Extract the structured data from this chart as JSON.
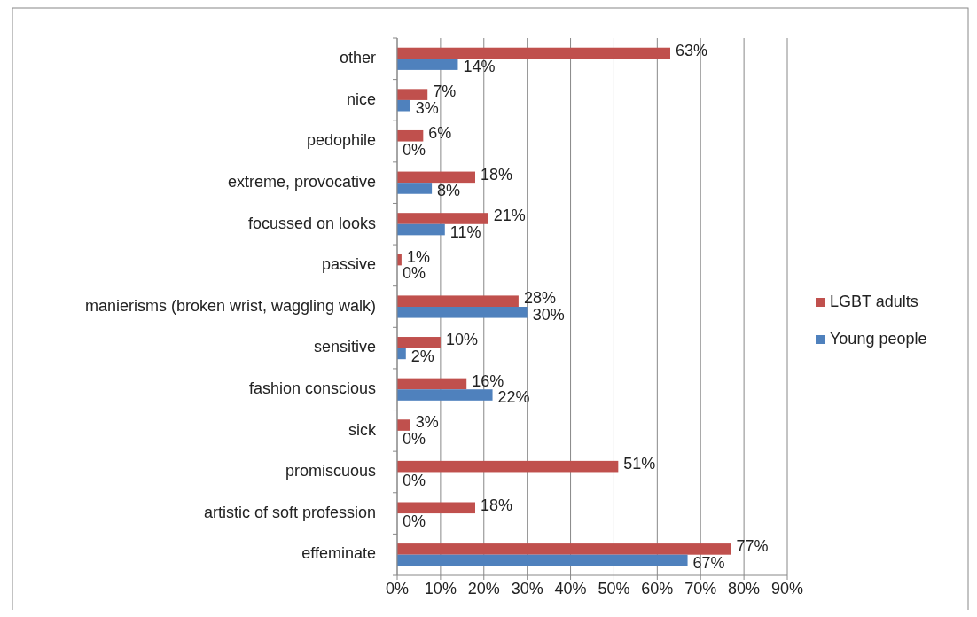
{
  "chart_data": {
    "type": "bar",
    "orientation": "horizontal",
    "categories": [
      "other",
      "nice",
      "pedophile",
      "extreme, provocative",
      "focussed on looks",
      "passive",
      "manierisms (broken wrist, waggling walk)",
      "sensitive",
      "fashion conscious",
      "sick",
      "promiscuous",
      "artistic of soft profession",
      "effeminate"
    ],
    "series": [
      {
        "name": "LGBT adults",
        "color": "#c0504d",
        "values": [
          63,
          7,
          6,
          18,
          21,
          1,
          28,
          10,
          16,
          3,
          51,
          18,
          77
        ],
        "value_labels": [
          "63%",
          "7%",
          "6%",
          "18%",
          "21%",
          "1%",
          "28%",
          "10%",
          "16%",
          "3%",
          "51%",
          "18%",
          "77%"
        ]
      },
      {
        "name": "Young people",
        "color": "#4f81bd",
        "values": [
          14,
          3,
          0,
          8,
          11,
          0,
          30,
          2,
          22,
          0,
          0,
          0,
          67
        ],
        "value_labels": [
          "14%",
          "3%",
          "0%",
          "8%",
          "11%",
          "0%",
          "30%",
          "2%",
          "22%",
          "0%",
          "0%",
          "0%",
          "67%"
        ]
      }
    ],
    "xlim": [
      0,
      90
    ],
    "xticks": [
      {
        "value": 0,
        "label": "0%"
      },
      {
        "value": 10,
        "label": "10%"
      },
      {
        "value": 20,
        "label": "20%"
      },
      {
        "value": 30,
        "label": "30%"
      },
      {
        "value": 40,
        "label": "40%"
      },
      {
        "value": 50,
        "label": "50%"
      },
      {
        "value": 60,
        "label": "60%"
      },
      {
        "value": 70,
        "label": "70%"
      },
      {
        "value": 80,
        "label": "80%"
      },
      {
        "value": 90,
        "label": "90%"
      }
    ],
    "grid": "x",
    "legend": "right"
  }
}
